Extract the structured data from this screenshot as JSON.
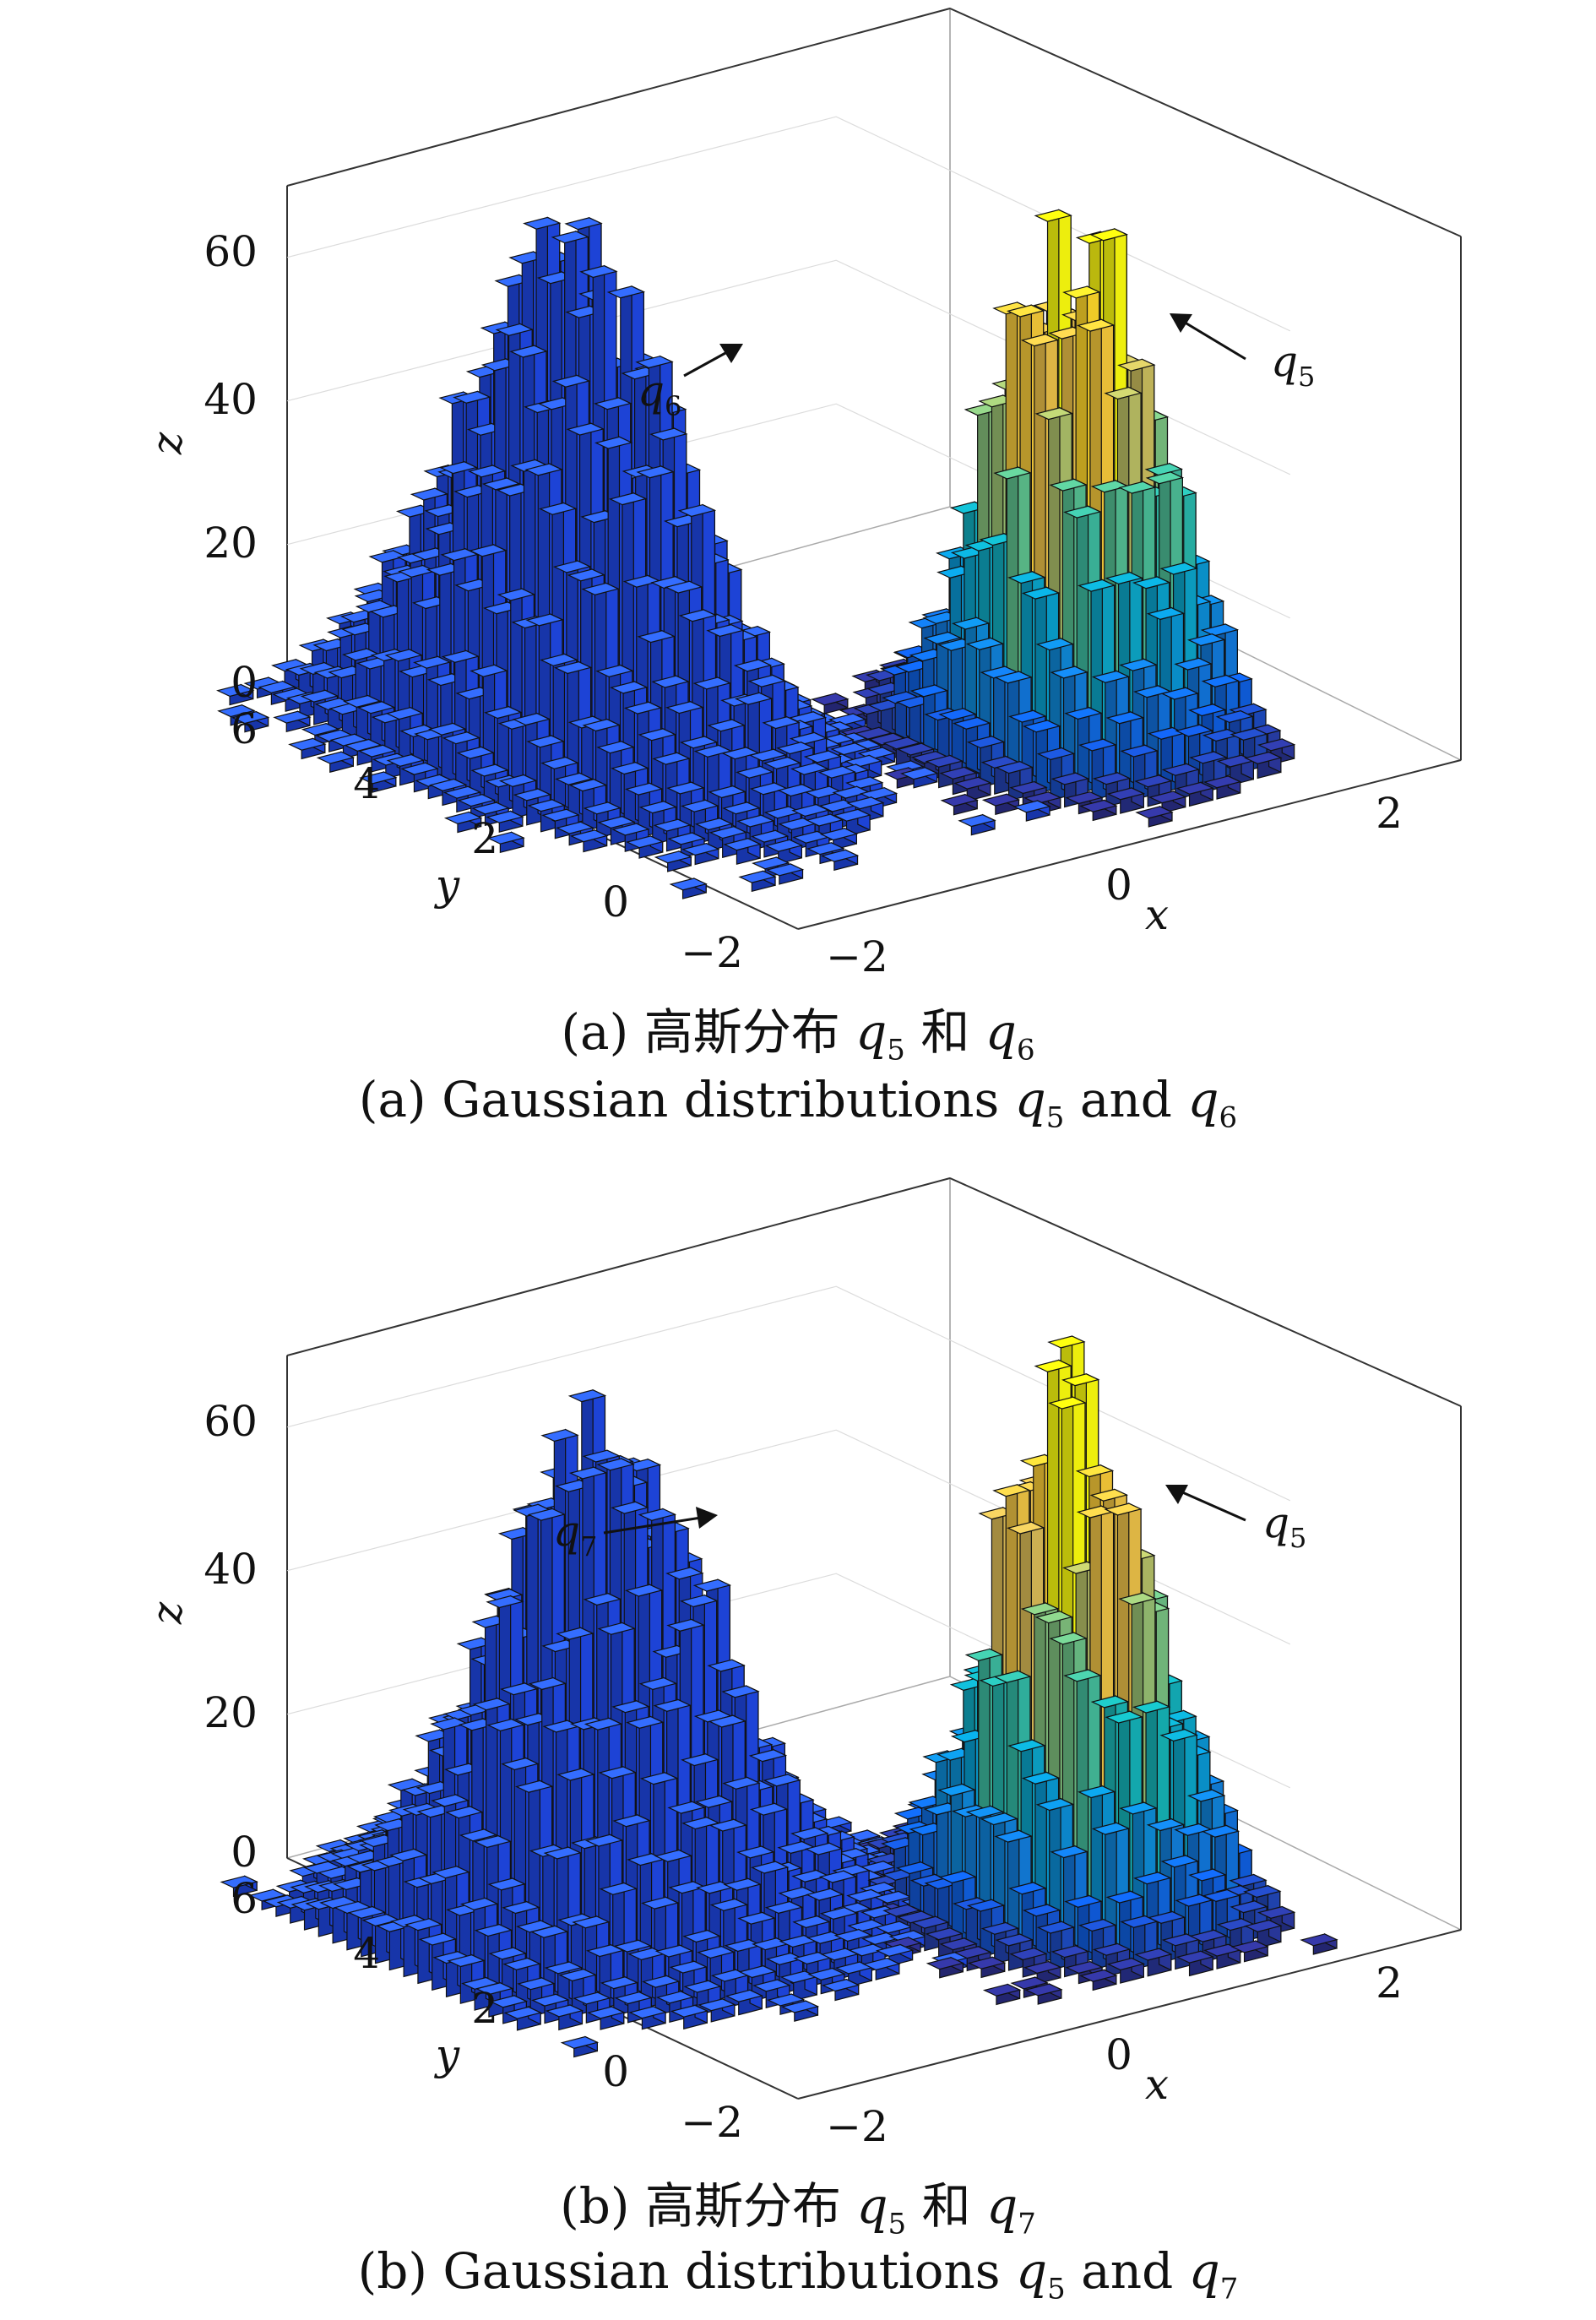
{
  "chart_data": [
    {
      "type": "bar3d",
      "xlabel": "x",
      "ylabel": "y",
      "zlabel": "z",
      "x_ticks": [
        "−2",
        "0",
        "2"
      ],
      "y_ticks": [
        "−2",
        "0",
        "2",
        "4",
        "6"
      ],
      "z_ticks": [
        "0",
        "20",
        "40",
        "60"
      ],
      "zlim": [
        0,
        70
      ],
      "grid": true,
      "colormap": "parula",
      "series": [
        {
          "name": "q5",
          "center": [
            2,
            0
          ],
          "peak_z": 70,
          "colored_by_height": true
        },
        {
          "name": "q6",
          "center": [
            -1,
            3
          ],
          "peak_z": 62,
          "colored_by_height": false
        }
      ],
      "annotations": [
        {
          "label": "q",
          "subscript": "6"
        },
        {
          "label": "q",
          "subscript": "5"
        }
      ],
      "caption_cn": {
        "prefix": "(a) 高斯分布 ",
        "q1": "q",
        "s1": "5",
        "mid": " 和 ",
        "q2": "q",
        "s2": "6"
      },
      "caption_en": {
        "prefix": "(a) Gaussian distributions ",
        "q1": "q",
        "s1": "5",
        "mid": " and ",
        "q2": "q",
        "s2": "6"
      }
    },
    {
      "type": "bar3d",
      "xlabel": "x",
      "ylabel": "y",
      "zlabel": "z",
      "x_ticks": [
        "−2",
        "0",
        "2"
      ],
      "y_ticks": [
        "−2",
        "0",
        "2",
        "4",
        "6"
      ],
      "z_ticks": [
        "0",
        "20",
        "40",
        "60"
      ],
      "zlim": [
        0,
        70
      ],
      "grid": true,
      "colormap": "parula",
      "series": [
        {
          "name": "q5",
          "center": [
            2,
            0
          ],
          "peak_z": 70,
          "colored_by_height": true
        },
        {
          "name": "q7",
          "center": [
            -1,
            2.5
          ],
          "peak_z": 63,
          "colored_by_height": false
        }
      ],
      "annotations": [
        {
          "label": "q",
          "subscript": "7"
        },
        {
          "label": "q",
          "subscript": "5"
        }
      ],
      "caption_cn": {
        "prefix": "(b) 高斯分布 ",
        "q1": "q",
        "s1": "5",
        "mid": " 和 ",
        "q2": "q",
        "s2": "7"
      },
      "caption_en": {
        "prefix": "(b) Gaussian distributions ",
        "q1": "q",
        "s1": "5",
        "mid": " and ",
        "q2": "q",
        "s2": "7"
      }
    }
  ]
}
